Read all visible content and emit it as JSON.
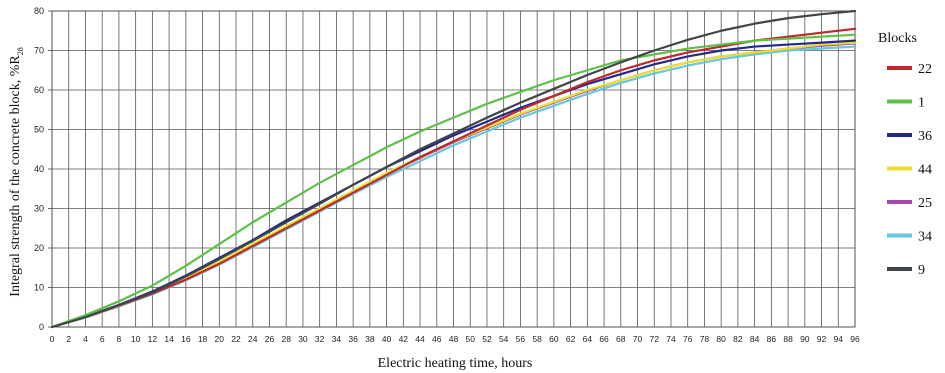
{
  "chart_data": {
    "type": "line",
    "xlabel": "Electric heating time, hours",
    "ylabel_main": "Integral strength of the concrete block, %R",
    "ylabel_sub": "28",
    "xlim": [
      0,
      96
    ],
    "ylim": [
      0,
      80
    ],
    "x_ticks": [
      0,
      2,
      4,
      6,
      8,
      10,
      12,
      14,
      16,
      18,
      20,
      22,
      24,
      26,
      28,
      30,
      32,
      34,
      36,
      38,
      40,
      42,
      44,
      46,
      48,
      50,
      52,
      54,
      56,
      58,
      60,
      62,
      64,
      66,
      68,
      70,
      72,
      74,
      76,
      78,
      80,
      82,
      84,
      86,
      88,
      90,
      92,
      94,
      96
    ],
    "y_ticks": [
      0,
      10,
      20,
      30,
      40,
      50,
      60,
      70,
      80
    ],
    "grid": true,
    "legend_title": "Blocks",
    "legend_position": "right",
    "x": [
      0,
      4,
      8,
      12,
      16,
      20,
      24,
      28,
      32,
      36,
      40,
      44,
      48,
      52,
      56,
      60,
      64,
      68,
      72,
      76,
      80,
      84,
      88,
      92,
      96
    ],
    "series": [
      {
        "name": "22",
        "color": "#c0282a",
        "values": [
          0,
          2.5,
          5.5,
          8.5,
          12,
          16,
          20.5,
          25,
          29.5,
          34,
          38.5,
          43,
          47,
          51,
          55,
          58.5,
          62,
          65,
          67.5,
          69.5,
          71,
          72.5,
          73.5,
          74.5,
          75.5
        ]
      },
      {
        "name": "1",
        "color": "#5cc246",
        "values": [
          0,
          3,
          6.5,
          10.5,
          15.5,
          21,
          26.5,
          31.5,
          36.5,
          41,
          45.5,
          49.5,
          53,
          56.5,
          59.5,
          62.5,
          65,
          67.5,
          69,
          70.5,
          71.5,
          72.5,
          73,
          73.5,
          74
        ]
      },
      {
        "name": "36",
        "color": "#232a8e",
        "values": [
          0,
          2.6,
          5.6,
          9,
          13,
          17.5,
          22,
          27,
          31.5,
          36,
          40.5,
          44.5,
          48.5,
          52,
          55.5,
          58.5,
          61.5,
          64,
          66.5,
          68.5,
          70,
          71,
          71.5,
          72,
          72.5
        ]
      },
      {
        "name": "44",
        "color": "#e8e030",
        "values": [
          0,
          2.5,
          5.4,
          8.6,
          12.3,
          16.5,
          21,
          25.5,
          30,
          34.5,
          39,
          43,
          47,
          50.5,
          54,
          57,
          60,
          62.5,
          65,
          67,
          68.5,
          69.5,
          70.5,
          71.5,
          72
        ]
      },
      {
        "name": "25",
        "color": "#a84aa8",
        "values": [
          0,
          2.5,
          5.3,
          8.5,
          12.2,
          16.3,
          20.8,
          25.3,
          29.8,
          34.3,
          38.8,
          42.8,
          46.8,
          50.3,
          53.8,
          56.8,
          59.8,
          62.5,
          65,
          67,
          68.5,
          69.5,
          70.5,
          71.2,
          71.8
        ]
      },
      {
        "name": "34",
        "color": "#68c6dd",
        "values": [
          0,
          2.4,
          5.2,
          8.3,
          11.8,
          15.8,
          20.2,
          24.7,
          29.2,
          33.7,
          38,
          42,
          46,
          49.5,
          53,
          56,
          59,
          61.8,
          64.2,
          66.2,
          67.8,
          69,
          70,
          70.5,
          71
        ]
      },
      {
        "name": "9",
        "color": "#3f4548",
        "values": [
          0,
          2.5,
          5.5,
          8.8,
          12.8,
          17.2,
          21.8,
          26.5,
          31.2,
          36,
          40.5,
          45,
          49,
          53,
          56.8,
          60.3,
          63.8,
          67,
          70,
          72.7,
          75,
          76.8,
          78.2,
          79.2,
          80
        ]
      }
    ]
  }
}
